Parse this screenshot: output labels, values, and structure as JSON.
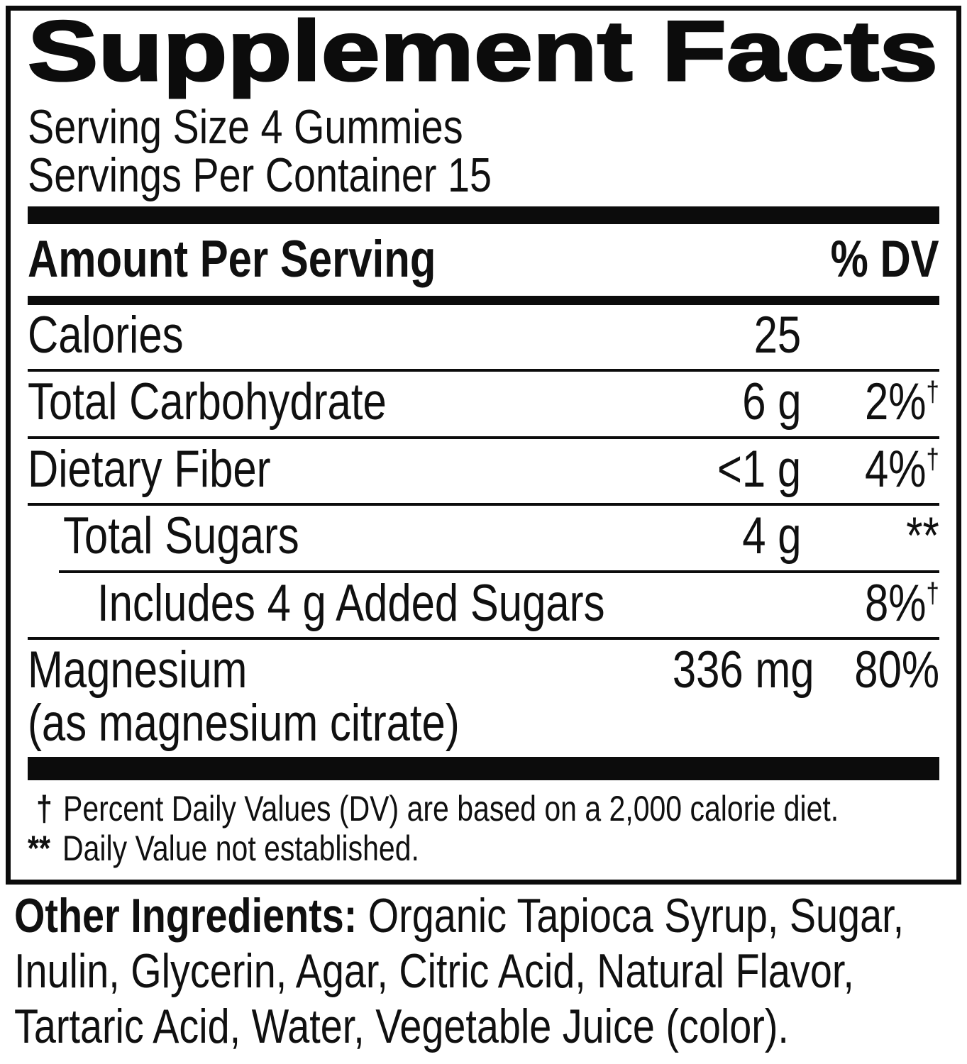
{
  "colors": {
    "ink": "#101010",
    "bar": "#0c0c0c",
    "background": "#ffffff"
  },
  "panel": {
    "title": "Supplement Facts",
    "serving_size": "Serving Size 4 Gummies",
    "servings_per_container": "Servings Per Container 15",
    "header": {
      "amount_per_serving": "Amount Per Serving",
      "percent_dv": "% DV"
    },
    "rows": [
      {
        "name": "Calories",
        "amount": "25",
        "dv": ""
      },
      {
        "name": "Total Carbohydrate",
        "amount": "6 g",
        "dv": "2%",
        "dv_sup": "†"
      },
      {
        "name": "Dietary Fiber",
        "amount": "<1 g",
        "dv": "4%",
        "dv_sup": "†"
      },
      {
        "name": "Total Sugars",
        "amount": "4 g",
        "dv": "**"
      },
      {
        "name": "Includes 4 g Added Sugars",
        "amount": "",
        "dv": "8%",
        "dv_sup": "†"
      },
      {
        "name": "Magnesium",
        "name2": "(as magnesium citrate)",
        "amount": "336 mg",
        "dv": "80%"
      }
    ],
    "footnotes": [
      {
        "marker": "†",
        "text": "Percent Daily Values (DV) are based on a 2,000 calorie diet."
      },
      {
        "marker": "**",
        "text": "Daily Value not established."
      }
    ]
  },
  "other_ingredients": {
    "label": "Other Ingredients:",
    "text": "Organic Tapioca Syrup, Sugar, Inulin, Glycerin, Agar, Citric Acid, Natural Flavor, Tartaric Acid, Water, Vegetable Juice (color)."
  }
}
